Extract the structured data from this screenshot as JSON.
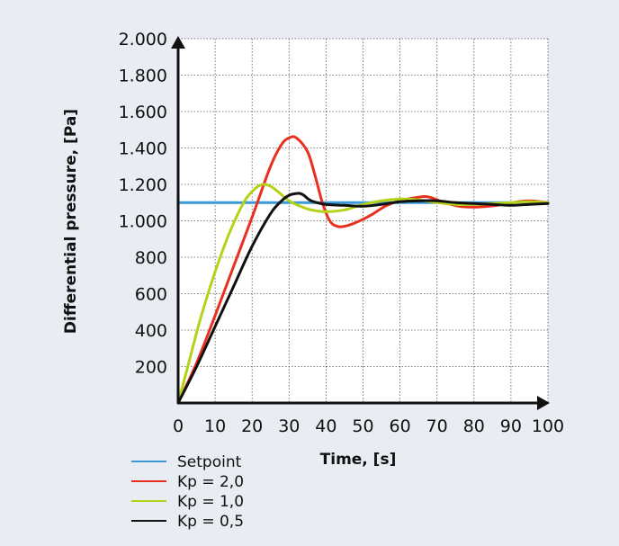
{
  "chart_data": {
    "type": "line",
    "xlabel": "Time, [s]",
    "ylabel": "Differential pressure, [Pa]",
    "xlim": [
      0,
      100
    ],
    "ylim": [
      0,
      2000
    ],
    "x_ticks": [
      0,
      10,
      20,
      30,
      40,
      50,
      60,
      70,
      80,
      90,
      100
    ],
    "x_tick_labels": [
      "0",
      "10",
      "20",
      "30",
      "40",
      "50",
      "60",
      "70",
      "80",
      "90",
      "100"
    ],
    "y_ticks": [
      200,
      400,
      600,
      800,
      1000,
      1200,
      1400,
      1600,
      1800,
      2000
    ],
    "y_tick_labels": [
      "200",
      "400",
      "600",
      "800",
      "1.000",
      "1.200",
      "1.400",
      "1.600",
      "1.800",
      "2.000"
    ],
    "grid": true,
    "legend_position": "bottom-left",
    "series": [
      {
        "name": "Setpoint",
        "color": "#3a9ad9",
        "x": [
          0,
          100
        ],
        "y": [
          1100,
          1100
        ]
      },
      {
        "name": "Kp = 2,0",
        "color": "#e8301f",
        "x": [
          0,
          5,
          10,
          15,
          20,
          25,
          28,
          30,
          32,
          35,
          37,
          39,
          41,
          43,
          45,
          48,
          52,
          56,
          60,
          65,
          68,
          72,
          76,
          80,
          84,
          88,
          92,
          95,
          98,
          100
        ],
        "y": [
          0,
          220,
          480,
          750,
          1020,
          1300,
          1420,
          1455,
          1455,
          1380,
          1250,
          1100,
          1000,
          970,
          970,
          990,
          1030,
          1080,
          1110,
          1130,
          1130,
          1100,
          1080,
          1075,
          1080,
          1090,
          1105,
          1110,
          1105,
          1100
        ]
      },
      {
        "name": "Kp = 1,0",
        "color": "#b5d216",
        "x": [
          0,
          3,
          6,
          10,
          14,
          18,
          21,
          23,
          25,
          27,
          30,
          33,
          36,
          40,
          45,
          50,
          55,
          60,
          65,
          70,
          75,
          80,
          85,
          90,
          95,
          100
        ],
        "y": [
          0,
          230,
          460,
          720,
          940,
          1110,
          1180,
          1200,
          1190,
          1160,
          1110,
          1080,
          1060,
          1050,
          1060,
          1090,
          1110,
          1120,
          1115,
          1100,
          1090,
          1090,
          1095,
          1100,
          1105,
          1100
        ]
      },
      {
        "name": "Kp = 0,5",
        "color": "#111111",
        "x": [
          0,
          5,
          10,
          15,
          20,
          25,
          28,
          30,
          32,
          33,
          34,
          36,
          40,
          45,
          50,
          55,
          60,
          65,
          70,
          75,
          80,
          85,
          90,
          95,
          100
        ],
        "y": [
          0,
          200,
          420,
          640,
          860,
          1040,
          1110,
          1140,
          1150,
          1150,
          1140,
          1110,
          1090,
          1085,
          1080,
          1090,
          1105,
          1110,
          1110,
          1100,
          1095,
          1090,
          1085,
          1090,
          1095
        ]
      }
    ]
  }
}
